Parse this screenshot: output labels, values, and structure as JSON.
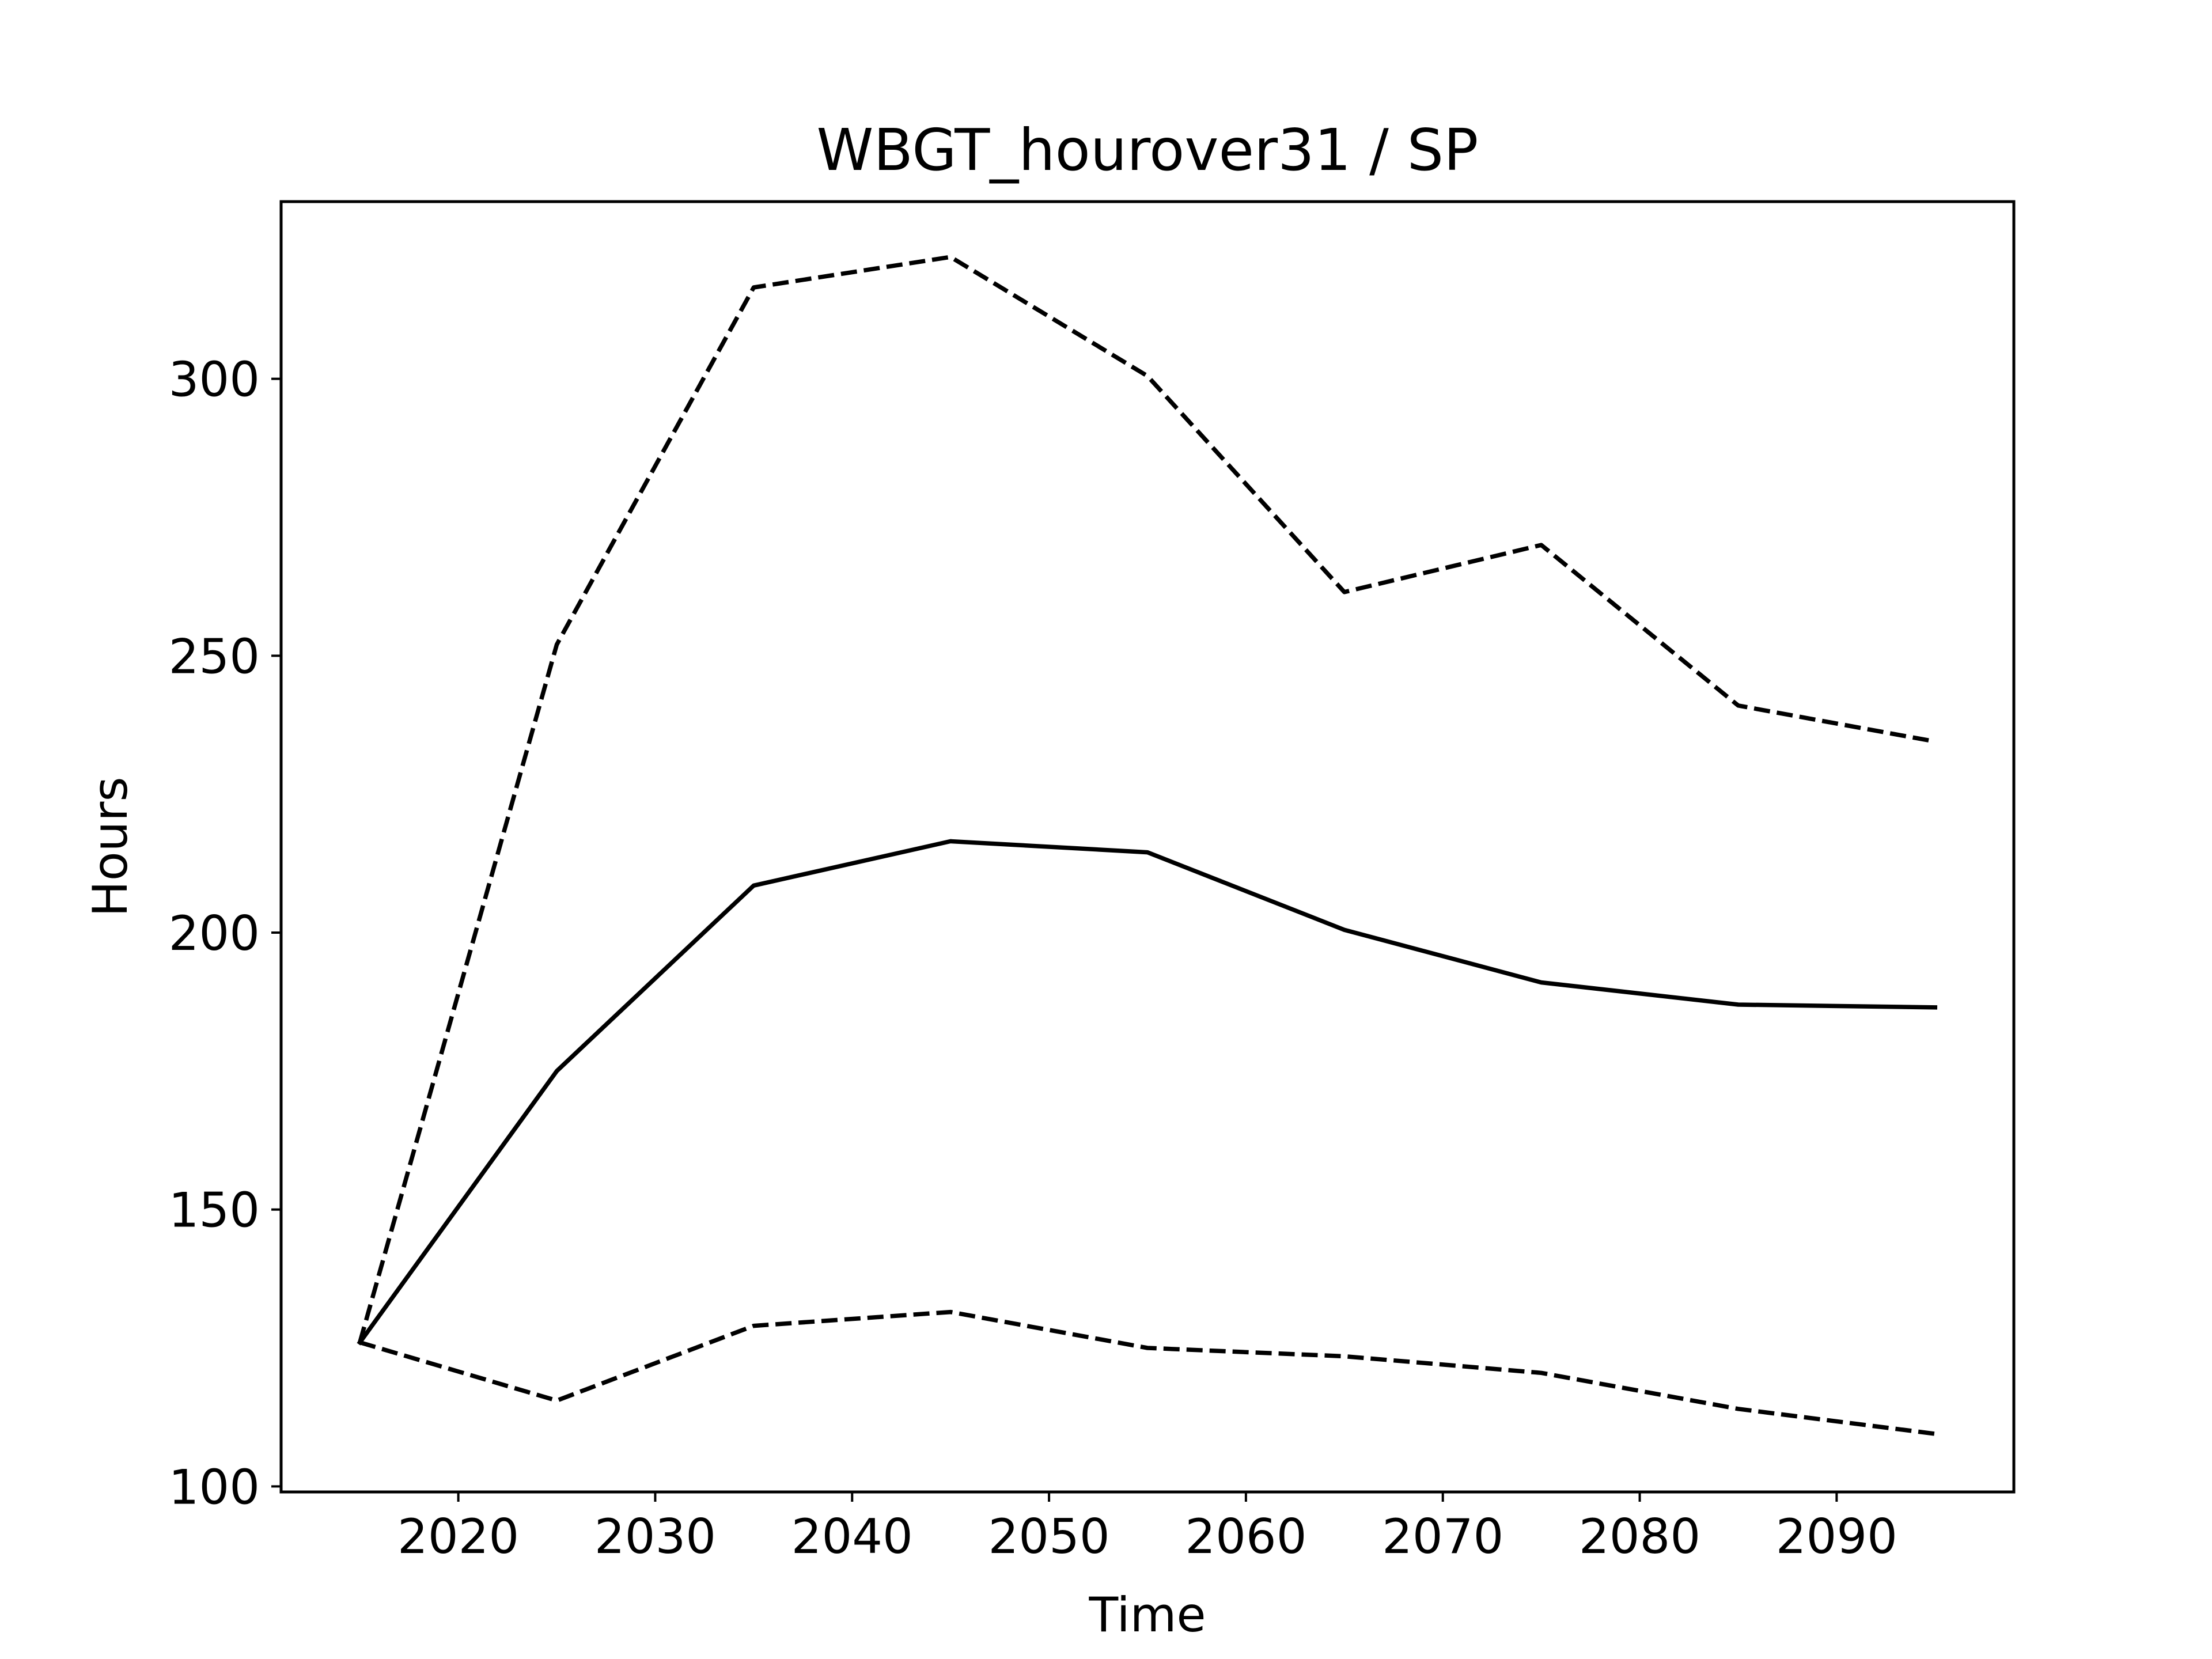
{
  "chart_data": {
    "type": "line",
    "title": "WBGT_hourover31 / SP",
    "xlabel": "Time",
    "ylabel": "Hours",
    "xlim": [
      2011,
      2099
    ],
    "ylim": [
      99,
      332
    ],
    "xticks": [
      2020,
      2030,
      2040,
      2050,
      2060,
      2070,
      2080,
      2090
    ],
    "yticks": [
      100,
      150,
      200,
      250,
      300
    ],
    "grid": false,
    "legend": "none",
    "x": [
      2015,
      2025,
      2035,
      2045,
      2055,
      2065,
      2075,
      2085,
      2095
    ],
    "series": [
      {
        "style": "solid",
        "color": "#000000",
        "values": [
          126,
          175,
          208.5,
          216.5,
          214.5,
          200.5,
          191,
          187,
          186.5
        ]
      },
      {
        "style": "dashed",
        "color": "#000000",
        "values": [
          126,
          252,
          316.5,
          322,
          300.5,
          261.5,
          270,
          241,
          234.5
        ]
      },
      {
        "style": "dashed",
        "color": "#000000",
        "values": [
          126,
          115.5,
          129,
          131.5,
          125,
          123.5,
          120.5,
          114,
          109.5
        ]
      }
    ]
  }
}
